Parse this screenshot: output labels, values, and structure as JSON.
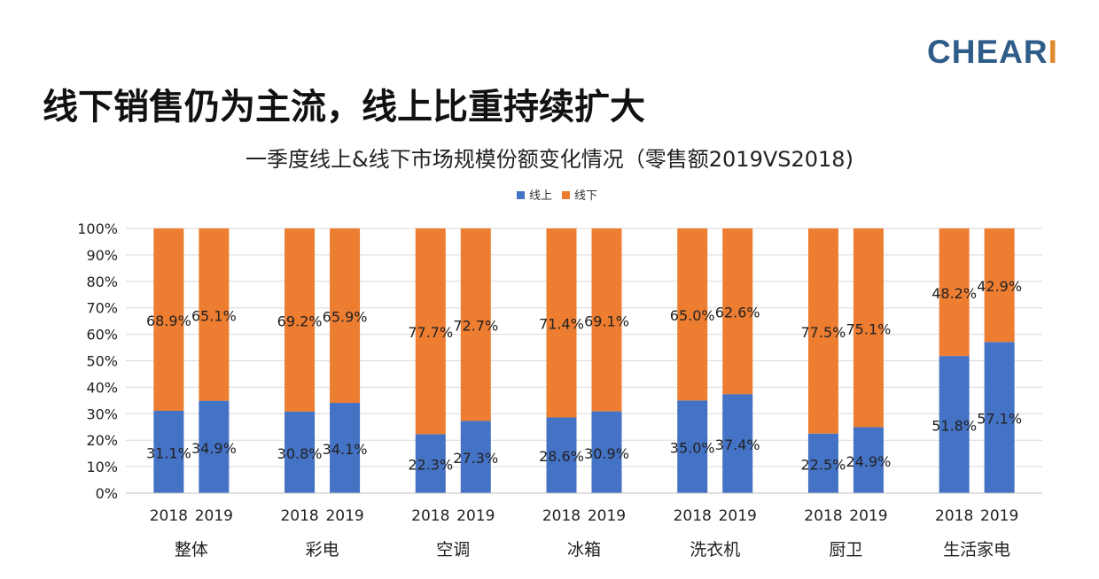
{
  "brand": {
    "logo_main": "CHEAR",
    "logo_accent": "I"
  },
  "headline": "线下销售仍为主流，线上比重持续扩大",
  "chart_data": {
    "type": "bar",
    "stacked": true,
    "title": "一季度线上&线下市场规模份额变化情况（零售额2019VS2018)",
    "legend": {
      "position": "top",
      "entries": [
        "线上",
        "线下"
      ]
    },
    "colors": {
      "线上": "#4472c4",
      "线下": "#ed7d31"
    },
    "ylim": [
      0,
      100
    ],
    "yticks": [
      "0%",
      "10%",
      "20%",
      "30%",
      "40%",
      "50%",
      "60%",
      "70%",
      "80%",
      "90%",
      "100%"
    ],
    "grid": true,
    "groups": [
      "整体",
      "彩电",
      "空调",
      "冰箱",
      "洗衣机",
      "厨卫",
      "生活家电"
    ],
    "years": [
      "2018",
      "2019"
    ],
    "series": [
      {
        "name": "线上",
        "values": [
          [
            31.1,
            34.9
          ],
          [
            30.8,
            34.1
          ],
          [
            22.3,
            27.3
          ],
          [
            28.6,
            30.9
          ],
          [
            35.0,
            37.4
          ],
          [
            22.5,
            24.9
          ],
          [
            51.8,
            57.1
          ]
        ]
      },
      {
        "name": "线下",
        "values": [
          [
            68.9,
            65.1
          ],
          [
            69.2,
            65.9
          ],
          [
            77.7,
            72.7
          ],
          [
            71.4,
            69.1
          ],
          [
            65.0,
            62.6
          ],
          [
            77.5,
            75.1
          ],
          [
            48.2,
            42.9
          ]
        ]
      }
    ],
    "labels": {
      "线上": [
        [
          "31.1%",
          "34.9%"
        ],
        [
          "30.8%",
          "34.1%"
        ],
        [
          "22.3%",
          "27.3%"
        ],
        [
          "28.6%",
          "30.9%"
        ],
        [
          "35.0%",
          "37.4%"
        ],
        [
          "22.5%",
          "24.9%"
        ],
        [
          "51.8%",
          "57.1%"
        ]
      ],
      "线下": [
        [
          "68.9%",
          "65.1%"
        ],
        [
          "69.2%",
          "65.9%"
        ],
        [
          "77.7%",
          "72.7%"
        ],
        [
          "71.4%",
          "69.1%"
        ],
        [
          "65.0%",
          "62.6%"
        ],
        [
          "77.5%",
          "75.1%"
        ],
        [
          "48.2%",
          "42.9%"
        ]
      ]
    }
  }
}
